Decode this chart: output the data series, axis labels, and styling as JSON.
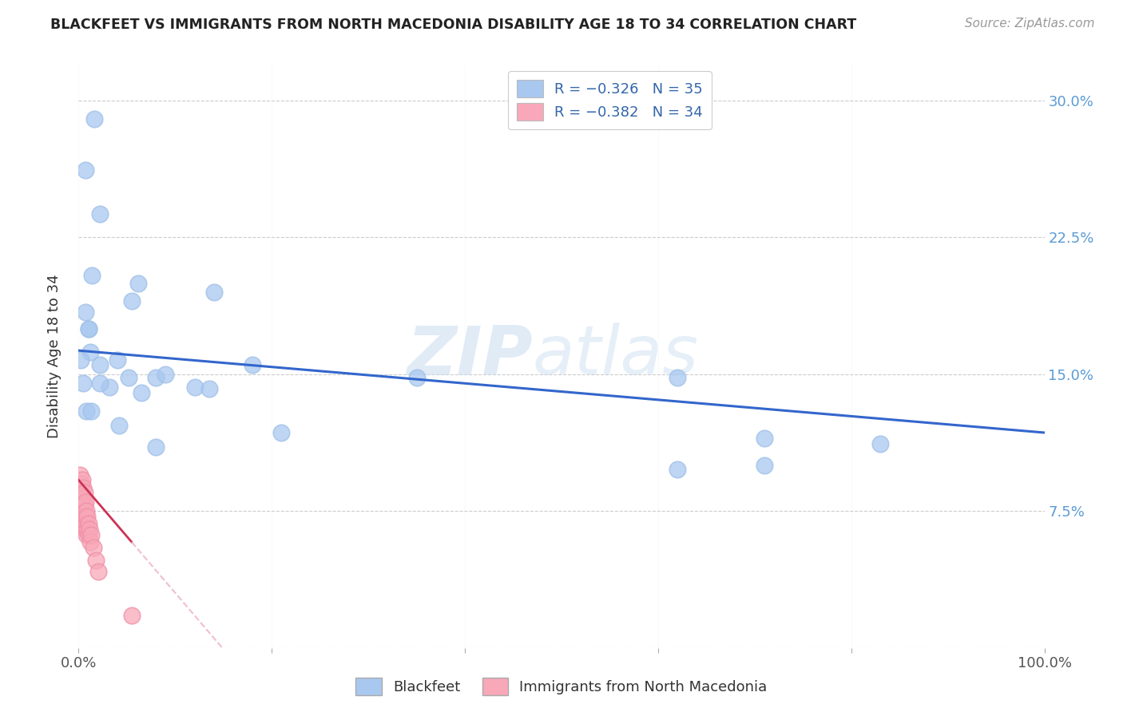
{
  "title": "BLACKFEET VS IMMIGRANTS FROM NORTH MACEDONIA DISABILITY AGE 18 TO 34 CORRELATION CHART",
  "source": "Source: ZipAtlas.com",
  "ylabel": "Disability Age 18 to 34",
  "xlim": [
    0,
    1.0
  ],
  "ylim": [
    0,
    0.32
  ],
  "xticks": [
    0.0,
    0.2,
    0.4,
    0.6,
    0.8,
    1.0
  ],
  "xticklabels": [
    "0.0%",
    "",
    "",
    "",
    "",
    "100.0%"
  ],
  "yticks": [
    0.0,
    0.075,
    0.15,
    0.225,
    0.3
  ],
  "yticklabels_right": [
    "",
    "7.5%",
    "15.0%",
    "22.5%",
    "30.0%"
  ],
  "watermark_zip": "ZIP",
  "watermark_atlas": "atlas",
  "legend_r1": "R = −0.326",
  "legend_n1": "N = 35",
  "legend_r2": "R = −0.382",
  "legend_n2": "N = 34",
  "blue_scatter_color": "#A8C8F0",
  "blue_scatter_edge": "#A0C0E8",
  "pink_scatter_color": "#F8A8B8",
  "pink_scatter_edge": "#F090A8",
  "blue_line_color": "#3366CC",
  "pink_line_solid_color": "#CC3355",
  "pink_line_dash_color": "#F0C0CC",
  "blackfeet_x": [
    0.016,
    0.007,
    0.014,
    0.007,
    0.01,
    0.022,
    0.01,
    0.022,
    0.008,
    0.013,
    0.055,
    0.14,
    0.062,
    0.08,
    0.12,
    0.065,
    0.09,
    0.04,
    0.032,
    0.012,
    0.022,
    0.052,
    0.135,
    0.35,
    0.62,
    0.71,
    0.83,
    0.71,
    0.62,
    0.18,
    0.21,
    0.08,
    0.042,
    0.002,
    0.005
  ],
  "blackfeet_y": [
    0.29,
    0.262,
    0.204,
    0.184,
    0.175,
    0.238,
    0.175,
    0.155,
    0.13,
    0.13,
    0.19,
    0.195,
    0.2,
    0.148,
    0.143,
    0.14,
    0.15,
    0.158,
    0.143,
    0.162,
    0.145,
    0.148,
    0.142,
    0.148,
    0.148,
    0.115,
    0.112,
    0.1,
    0.098,
    0.155,
    0.118,
    0.11,
    0.122,
    0.158,
    0.145
  ],
  "macedonia_x": [
    0.001,
    0.002,
    0.002,
    0.003,
    0.003,
    0.003,
    0.004,
    0.004,
    0.004,
    0.005,
    0.005,
    0.005,
    0.005,
    0.006,
    0.006,
    0.006,
    0.006,
    0.007,
    0.007,
    0.007,
    0.008,
    0.008,
    0.008,
    0.009,
    0.009,
    0.01,
    0.01,
    0.011,
    0.012,
    0.013,
    0.015,
    0.018,
    0.02,
    0.055
  ],
  "macedonia_y": [
    0.095,
    0.085,
    0.088,
    0.09,
    0.082,
    0.078,
    0.092,
    0.078,
    0.072,
    0.088,
    0.082,
    0.075,
    0.068,
    0.085,
    0.078,
    0.072,
    0.065,
    0.08,
    0.072,
    0.065,
    0.075,
    0.068,
    0.062,
    0.072,
    0.065,
    0.068,
    0.062,
    0.065,
    0.058,
    0.062,
    0.055,
    0.048,
    0.042,
    0.018
  ]
}
